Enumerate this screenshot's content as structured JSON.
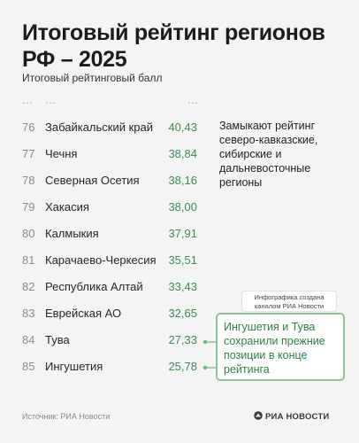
{
  "title": "Итоговый рейтинг регионов РФ – 2025",
  "subtitle": "Итоговый рейтинговый балл",
  "ellipsis": "...",
  "chart_data": {
    "type": "table",
    "title": "Итоговый рейтинг регионов РФ – 2025",
    "ylabel": "Итоговый рейтинговый балл",
    "rows": [
      {
        "rank": "76",
        "region": "Забайкальский край",
        "score": "40,43"
      },
      {
        "rank": "77",
        "region": "Чечня",
        "score": "38,84"
      },
      {
        "rank": "78",
        "region": "Северная Осетия",
        "score": "38,16"
      },
      {
        "rank": "79",
        "region": "Хакасия",
        "score": "38,00"
      },
      {
        "rank": "80",
        "region": "Калмыкия",
        "score": "37,91"
      },
      {
        "rank": "81",
        "region": "Карачаево-Черкесия",
        "score": "35,51"
      },
      {
        "rank": "82",
        "region": "Республика Алтай",
        "score": "33,43"
      },
      {
        "rank": "83",
        "region": "Еврейская АО",
        "score": "32,65"
      },
      {
        "rank": "84",
        "region": "Тува",
        "score": "27,33"
      },
      {
        "rank": "85",
        "region": "Ингушетия",
        "score": "25,78"
      }
    ]
  },
  "annotation_note": "Замыкают рейтинг северо-кавказские, сибирские и дальневосточные регионы",
  "callout_label": "Инфографика создана каналом РИА Новости",
  "callout_text": "Ингушетия и Тува сохранили прежние позиции в конце рейтинга",
  "source": "Источник: РИА Новости",
  "logo_text": "РИА НОВОСТИ",
  "colors": {
    "value_green": "#3f8a55",
    "callout_border": "#8cc39c",
    "background": "#f4f4f4"
  },
  "icons": {
    "logo": "ria-novosti-logo-icon"
  }
}
